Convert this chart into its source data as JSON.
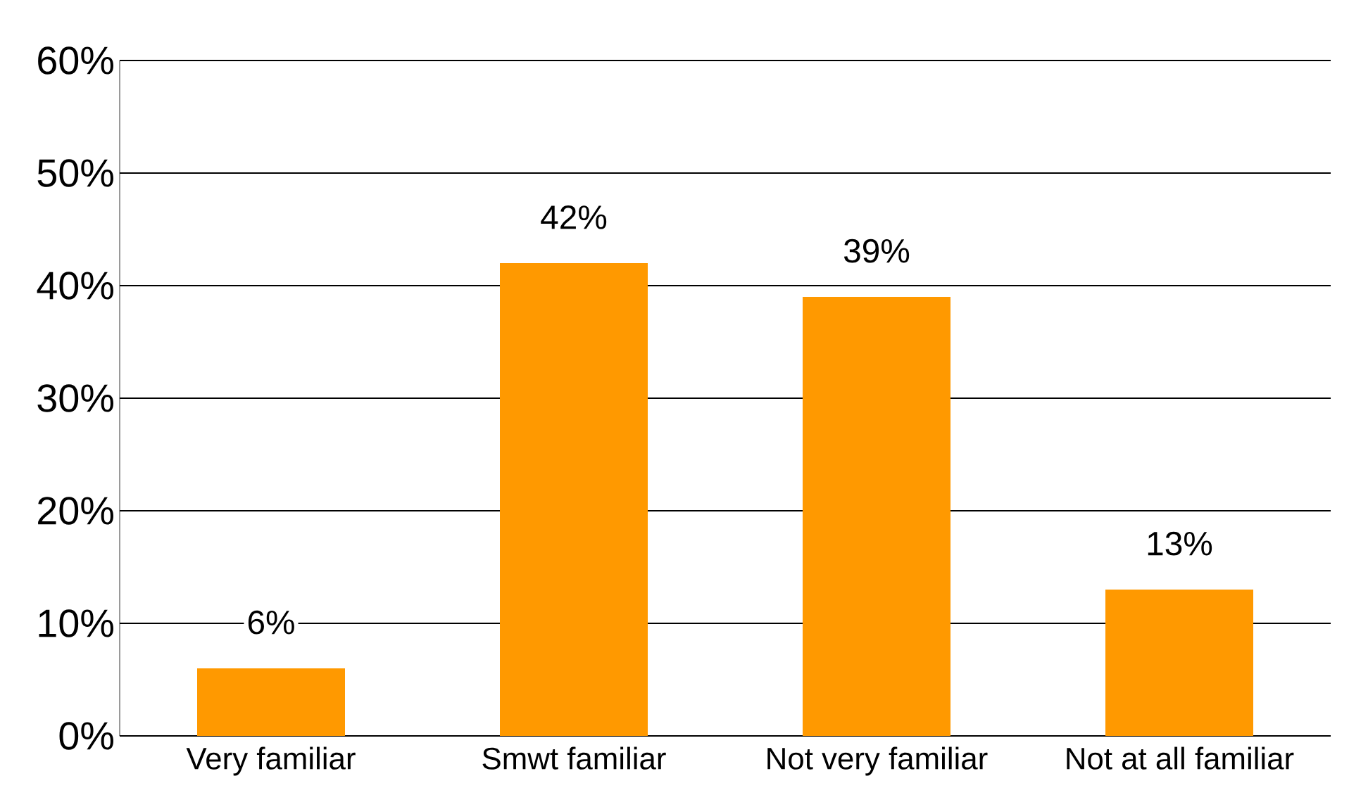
{
  "chart_data": {
    "type": "bar",
    "categories": [
      "Very familiar",
      "Smwt familiar",
      "Not very familiar",
      "Not at all familiar"
    ],
    "values": [
      6,
      42,
      39,
      13
    ],
    "value_labels": [
      "6%",
      "42%",
      "39%",
      "13%"
    ],
    "color": "#ff9900",
    "ylim": [
      0,
      60
    ],
    "yticks": [
      {
        "value": 0,
        "label": "0%"
      },
      {
        "value": 10,
        "label": "10%"
      },
      {
        "value": 20,
        "label": "20%"
      },
      {
        "value": 30,
        "label": "30%"
      },
      {
        "value": 40,
        "label": "40%"
      },
      {
        "value": 50,
        "label": "50%"
      },
      {
        "value": 60,
        "label": "60%"
      }
    ],
    "grid": "y"
  }
}
